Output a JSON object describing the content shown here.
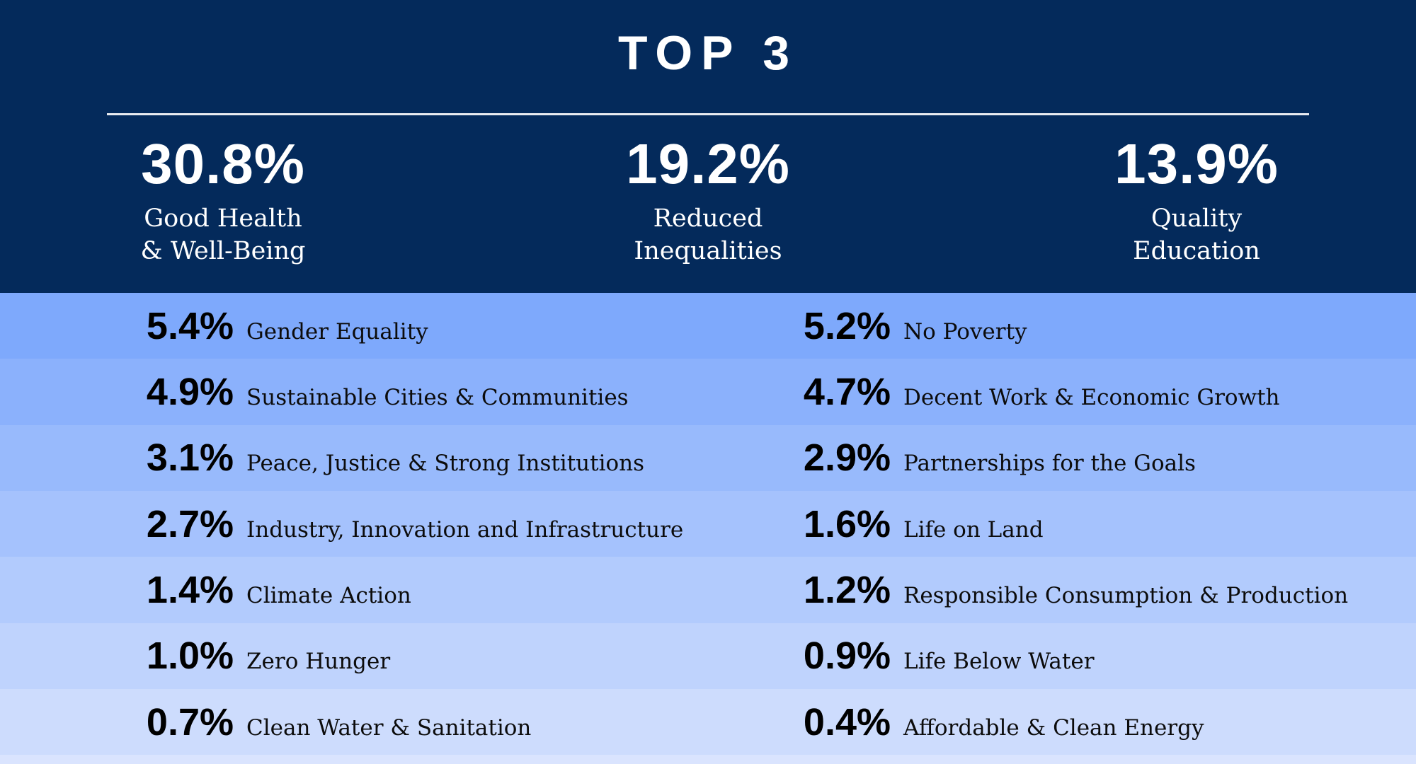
{
  "title": "TOP 3",
  "colors": {
    "header_navy": "#042a5b",
    "title_text": "#ffffff",
    "rule_white": "#e9ebf0",
    "row_percent_text": "#000000",
    "row_label_text": "#0c0c0c",
    "bottom_strip": "#dae4fe"
  },
  "top3": [
    {
      "value": "30.8%",
      "label_line1": "Good Health",
      "label_line2": "& Well-Being"
    },
    {
      "value": "19.2%",
      "label_line1": "Reduced",
      "label_line2": "Inequalities"
    },
    {
      "value": "13.9%",
      "label_line1": "Quality",
      "label_line2": "Education"
    }
  ],
  "rows": [
    {
      "bg": "#7ea9fc",
      "left": {
        "value": "5.4%",
        "label": "Gender Equality"
      },
      "right": {
        "value": "5.2%",
        "label": "No Poverty"
      }
    },
    {
      "bg": "#8bb1fc",
      "left": {
        "value": "4.9%",
        "label": "Sustainable Cities & Communities"
      },
      "right": {
        "value": "4.7%",
        "label": "Decent Work & Economic Growth"
      }
    },
    {
      "bg": "#98bafc",
      "left": {
        "value": "3.1%",
        "label": "Peace, Justice & Strong Institutions"
      },
      "right": {
        "value": "2.9%",
        "label": "Partnerships for the Goals"
      }
    },
    {
      "bg": "#a5c2fd",
      "left": {
        "value": "2.7%",
        "label": "Industry, Innovation and Infrastructure"
      },
      "right": {
        "value": "1.6%",
        "label": "Life on Land"
      }
    },
    {
      "bg": "#b2cbfd",
      "left": {
        "value": "1.4%",
        "label": "Climate Action"
      },
      "right": {
        "value": "1.2%",
        "label": "Responsible Consumption & Production"
      }
    },
    {
      "bg": "#bfd3fd",
      "left": {
        "value": "1.0%",
        "label": "Zero Hunger"
      },
      "right": {
        "value": "0.9%",
        "label": "Life Below Water"
      }
    },
    {
      "bg": "#cddcfd",
      "left": {
        "value": "0.7%",
        "label": "Clean Water & Sanitation"
      },
      "right": {
        "value": "0.4%",
        "label": "Affordable & Clean Energy"
      }
    }
  ],
  "chart_data": {
    "type": "table",
    "title": "TOP 3",
    "categories": [
      "Good Health & Well-Being",
      "Reduced Inequalities",
      "Quality Education",
      "Gender Equality",
      "No Poverty",
      "Sustainable Cities & Communities",
      "Decent Work & Economic Growth",
      "Peace, Justice & Strong Institutions",
      "Partnerships for the Goals",
      "Industry, Innovation and Infrastructure",
      "Life on Land",
      "Climate Action",
      "Responsible Consumption & Production",
      "Zero Hunger",
      "Life Below Water",
      "Clean Water & Sanitation",
      "Affordable & Clean Energy"
    ],
    "values": [
      30.8,
      19.2,
      13.9,
      5.4,
      5.2,
      4.9,
      4.7,
      3.1,
      2.9,
      2.7,
      1.6,
      1.4,
      1.2,
      1.0,
      0.9,
      0.7,
      0.4
    ],
    "value_unit": "%",
    "layout": "top-3 highlighted in navy header; remaining goals as two-column alternating light-blue rows, darkest to lightest top to bottom"
  }
}
